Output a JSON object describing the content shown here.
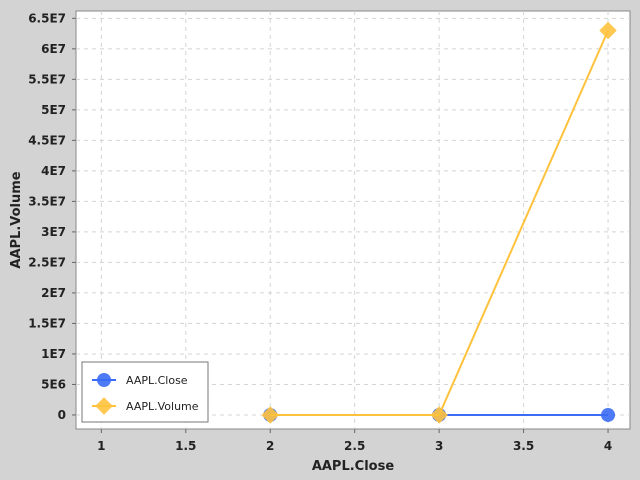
{
  "chart_data": {
    "type": "line",
    "title": "",
    "xlabel": "AAPL.Close",
    "ylabel": "AAPL.Volume",
    "xlim": [
      0.85,
      4.13
    ],
    "ylim": [
      -2300000,
      66200000
    ],
    "x_ticks": [
      1,
      1.5,
      2,
      2.5,
      3,
      3.5,
      4
    ],
    "x_tick_labels": [
      "1",
      "1.5",
      "2",
      "2.5",
      "3",
      "3.5",
      "4"
    ],
    "y_ticks": [
      0,
      5000000,
      10000000,
      15000000,
      20000000,
      25000000,
      30000000,
      35000000,
      40000000,
      45000000,
      50000000,
      55000000,
      60000000,
      65000000
    ],
    "y_tick_labels": [
      "0",
      "5E6",
      "1E7",
      "1.5E7",
      "2E7",
      "2.5E7",
      "3E7",
      "3.5E7",
      "4E7",
      "4.5E7",
      "5E7",
      "5.5E7",
      "6E7",
      "6.5E7"
    ],
    "grid": true,
    "legend_position": "bottom-left",
    "series": [
      {
        "name": "AAPL.Close",
        "color": "#3b6cf5",
        "marker": "circle",
        "x": [
          2,
          3,
          4
        ],
        "y": [
          0,
          0,
          0
        ]
      },
      {
        "name": "AAPL.Volume",
        "color": "#ffc23d",
        "marker": "diamond",
        "x": [
          2,
          3,
          4
        ],
        "y": [
          0,
          0,
          63000000
        ]
      }
    ]
  }
}
